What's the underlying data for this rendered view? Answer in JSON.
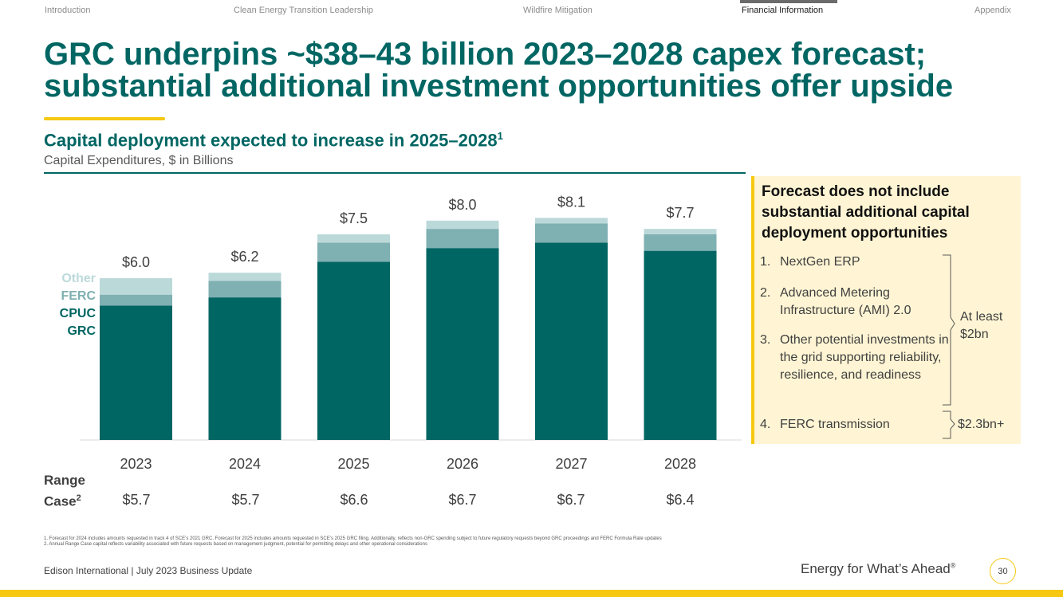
{
  "nav": {
    "items": [
      "Introduction",
      "Clean Energy Transition Leadership",
      "Wildfire Mitigation",
      "Financial Information",
      "Appendix"
    ],
    "active": "Financial Information"
  },
  "title": "GRC underpins ~$38–43 billion 2023–2028 capex forecast; substantial additional investment opportunities offer upside",
  "subtitle": {
    "text": "Capital deployment expected to increase in 2025–2028",
    "sup": "1"
  },
  "unit_label": "Capital Expenditures, $ in Billions",
  "legend": {
    "other": "Other",
    "ferc": "FERC",
    "cpuc": "CPUC",
    "grc": "GRC"
  },
  "chart_data": {
    "type": "bar",
    "stacked": true,
    "title": "Capital deployment expected to increase in 2025–2028",
    "ylabel": "Capital Expenditures, $ in Billions",
    "categories": [
      "2023",
      "2024",
      "2025",
      "2026",
      "2027",
      "2028"
    ],
    "series": [
      {
        "name": "CPUC GRC",
        "color": "#006663",
        "values": [
          4.9,
          5.2,
          6.5,
          7.0,
          7.2,
          6.9
        ]
      },
      {
        "name": "FERC",
        "color": "#7fb0b2",
        "values": [
          0.4,
          0.6,
          0.7,
          0.7,
          0.7,
          0.6
        ]
      },
      {
        "name": "Other",
        "color": "#bcd9da",
        "values": [
          0.6,
          0.3,
          0.3,
          0.3,
          0.2,
          0.2
        ]
      }
    ],
    "total_labels": [
      "$6.0",
      "$6.2",
      "$7.5",
      "$8.0",
      "$8.1",
      "$7.7"
    ],
    "ylim": [
      0,
      8.5
    ]
  },
  "range_case": {
    "label": "Range",
    "label2": "Case",
    "sup": "2",
    "values": [
      "$5.7",
      "$5.7",
      "$6.6",
      "$6.7",
      "$6.7",
      "$6.4"
    ]
  },
  "panel": {
    "title": "Forecast does not include substantial additional capital deployment opportunities",
    "items": [
      {
        "num": "1.",
        "text": "NextGen ERP"
      },
      {
        "num": "2.",
        "text": "Advanced Metering Infrastructure (AMI) 2.0"
      },
      {
        "num": "3.",
        "text": "Other potential investments in the grid supporting reliability, resilience, and readiness"
      },
      {
        "num": "4.",
        "text": "FERC transmission"
      }
    ],
    "brace1_note_a": "At least",
    "brace1_note_b": "$2bn",
    "brace2_note": "$2.3bn+"
  },
  "footnotes": [
    "1.  Forecast for 2024 includes amounts requested in track 4 of SCE’s 2021 GRC. Forecast for 2025 includes amounts requested in SCE’s 2025 GRC filing. Additionally, reflects non-GRC spending subject to future regulatory requests beyond GRC proceedings and FERC Formula Rate updates",
    "2.  Annual Range Case capital reflects variability associated with future requests based on management judgment, potential for permitting delays and other operational considerations"
  ],
  "footer": {
    "left": "Edison International | July 2023 Business Update",
    "tagline": "Energy for What’s Ahead",
    "tagline_mark": "®",
    "page": "30"
  },
  "colors": {
    "teal": "#006663",
    "ferc": "#7fb0b2",
    "other": "#bcd9da",
    "accent": "#f6c812",
    "panel_bg": "#fff5d4"
  }
}
